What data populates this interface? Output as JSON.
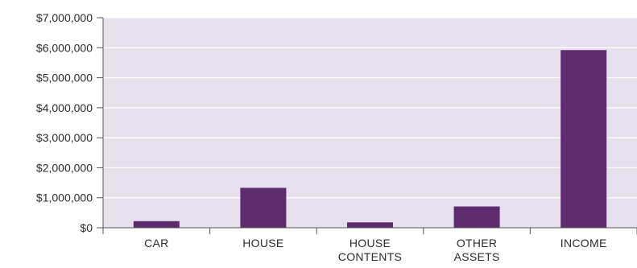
{
  "chart_data": {
    "type": "bar",
    "categories": [
      [
        "CAR"
      ],
      [
        "HOUSE"
      ],
      [
        "HOUSE",
        "CONTENTS"
      ],
      [
        "OTHER",
        "ASSETS"
      ],
      [
        "INCOME"
      ]
    ],
    "values": [
      220000,
      1330000,
      180000,
      710000,
      5920000
    ],
    "ylim": [
      0,
      7000000
    ],
    "yticks": [
      {
        "value": 0,
        "label": "$0"
      },
      {
        "value": 1000000,
        "label": "$1,000,000"
      },
      {
        "value": 2000000,
        "label": "$2,000,000"
      },
      {
        "value": 3000000,
        "label": "$3,000,000"
      },
      {
        "value": 4000000,
        "label": "$4,000,000"
      },
      {
        "value": 5000000,
        "label": "$5,000,000"
      },
      {
        "value": 6000000,
        "label": "$6,000,000"
      },
      {
        "value": 7000000,
        "label": "$7,000,000"
      }
    ],
    "grid": true,
    "legend": "none",
    "colors": {
      "bar": "#5e2b6e",
      "plot_background": "#e6e0ec",
      "gridline": "#ffffff",
      "axis": "#555555"
    }
  }
}
